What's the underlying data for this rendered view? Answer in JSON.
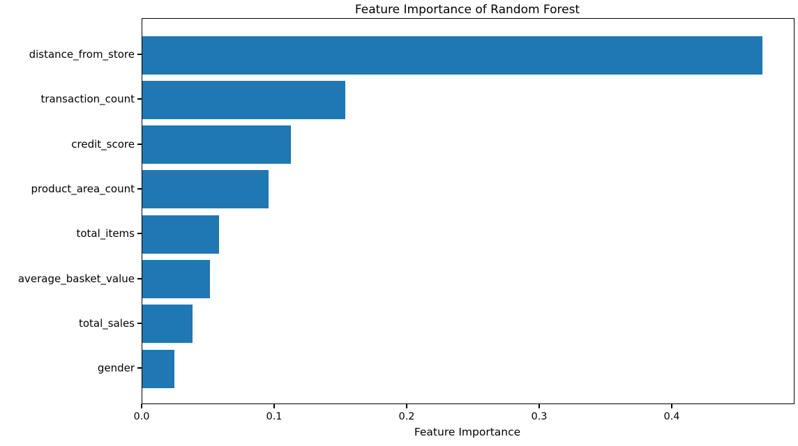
{
  "chart_data": {
    "type": "bar",
    "orientation": "horizontal",
    "title": "Feature Importance of Random Forest",
    "xlabel": "Feature Importance",
    "ylabel": "",
    "categories": [
      "distance_from_store",
      "transaction_count",
      "credit_score",
      "product_area_count",
      "total_items",
      "average_basket_value",
      "total_sales",
      "gender"
    ],
    "values": [
      0.468,
      0.153,
      0.112,
      0.095,
      0.058,
      0.051,
      0.038,
      0.024
    ],
    "x_ticks": [
      0.0,
      0.1,
      0.2,
      0.3,
      0.4
    ],
    "x_tick_labels": [
      "0.0",
      "0.1",
      "0.2",
      "0.3",
      "0.4"
    ],
    "xlim": [
      0.0,
      0.492
    ],
    "grid": false,
    "legend_position": "none",
    "bar_color": "#1f77b4",
    "axis_color": "#000000",
    "background_color": "#ffffff"
  }
}
